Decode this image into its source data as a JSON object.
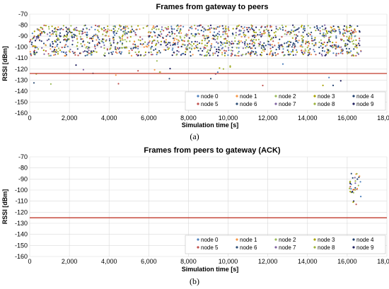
{
  "series_colors": [
    "#4f81bd",
    "#f79646",
    "#9bbb59",
    "#a9a400",
    "#1f3f6f",
    "#c0504d",
    "#2c4d75",
    "#8064a2",
    "#9cb33b",
    "#1f1f5f"
  ],
  "threshold_color": "#c0392b",
  "chart_data": [
    {
      "type": "scatter",
      "title": "Frames from gateway to peers",
      "xlabel": "Simulation time [s]",
      "ylabel": "RSSI [dBm]",
      "xlim": [
        0,
        18000
      ],
      "ylim": [
        -160,
        -70
      ],
      "xticks": [
        "0",
        "2,000",
        "4,000",
        "6,000",
        "8,000",
        "10,000",
        "12,000",
        "14,000",
        "16,000",
        "18,000"
      ],
      "yticks": [
        "-70",
        "-80",
        "-90",
        "-100",
        "-110",
        "-120",
        "-130",
        "-140",
        "-150",
        "-160"
      ],
      "threshold": -124,
      "grid": true,
      "legend_position": "bottom-right",
      "legend": [
        "node 0",
        "node 1",
        "node 2",
        "node 3",
        "node 4",
        "node 5",
        "node 6",
        "node 7",
        "node 8",
        "node 9"
      ],
      "caption": "(a)",
      "points_summary": {
        "main_cloud": {
          "x_range": [
            0,
            16700
          ],
          "y_range": [
            -108,
            -80
          ],
          "series": 10
        },
        "outliers": {
          "x_range": [
            0,
            16000
          ],
          "y_range": [
            -135,
            -110
          ]
        }
      }
    },
    {
      "type": "scatter",
      "title": "Frames from peers to gateway (ACK)",
      "xlabel": "Simulation time [s]",
      "ylabel": "RSSI [dBm]",
      "xlim": [
        0,
        18000
      ],
      "ylim": [
        -160,
        -70
      ],
      "xticks": [
        "0",
        "2,000",
        "4,000",
        "6,000",
        "8,000",
        "10,000",
        "12,000",
        "14,000",
        "16,000",
        "18,000"
      ],
      "yticks": [
        "-70",
        "-80",
        "-90",
        "-100",
        "-110",
        "-120",
        "-130",
        "-140",
        "-150",
        "-160"
      ],
      "threshold": -125,
      "grid": true,
      "legend_position": "bottom-right",
      "legend": [
        "node 0",
        "node 1",
        "node 2",
        "node 3",
        "node 4",
        "node 5",
        "node 6",
        "node 7",
        "node 8",
        "node 9"
      ],
      "caption": "(b)",
      "points_summary": {
        "cluster": {
          "x_range": [
            16100,
            16700
          ],
          "y_range": [
            -113,
            -85
          ],
          "series": 10
        }
      }
    }
  ]
}
